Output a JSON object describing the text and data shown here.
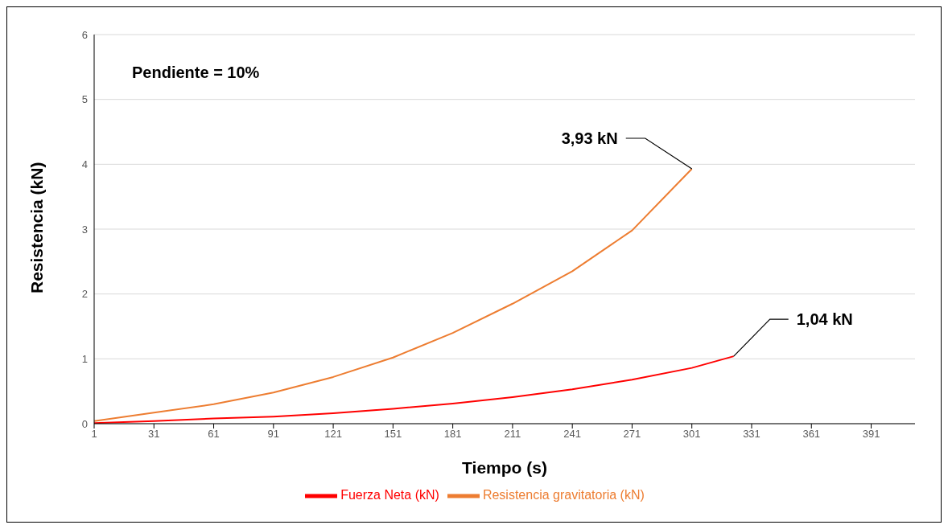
{
  "chart_data": {
    "type": "line",
    "xlabel": "Tiempo (s)",
    "ylabel": "Resistencia  (kN)",
    "xlim": [
      1,
      413
    ],
    "xticks": [
      1,
      31,
      61,
      91,
      121,
      151,
      181,
      211,
      241,
      271,
      301,
      331,
      361,
      391
    ],
    "ylim": [
      0,
      6
    ],
    "yticks": [
      0,
      1,
      2,
      3,
      4,
      5,
      6
    ],
    "grid": "y",
    "legend": "bottom",
    "marker": "none",
    "line_style": "solid",
    "series": [
      {
        "name": "Resistencia gravitatoria (kN)",
        "color": "#ed7d31",
        "x": [
          1,
          31,
          61,
          91,
          121,
          151,
          181,
          211,
          241,
          271,
          301
        ],
        "values": [
          0.04,
          0.17,
          0.3,
          0.48,
          0.72,
          1.02,
          1.4,
          1.85,
          2.35,
          2.98,
          3.93
        ]
      },
      {
        "name": "Fuerza Neta (kN)",
        "color": "#ff0000",
        "x": [
          1,
          31,
          61,
          91,
          121,
          151,
          181,
          211,
          241,
          271,
          301,
          322
        ],
        "values": [
          0.01,
          0.04,
          0.08,
          0.11,
          0.16,
          0.23,
          0.31,
          0.41,
          0.53,
          0.68,
          0.86,
          1.04
        ]
      }
    ],
    "annotations": [
      "Pendiente = 10%",
      {
        "text": "3,93 kN",
        "x": 301,
        "y": 3.93
      },
      {
        "text": "1,04 kN",
        "x": 322,
        "y": 1.04
      }
    ]
  }
}
